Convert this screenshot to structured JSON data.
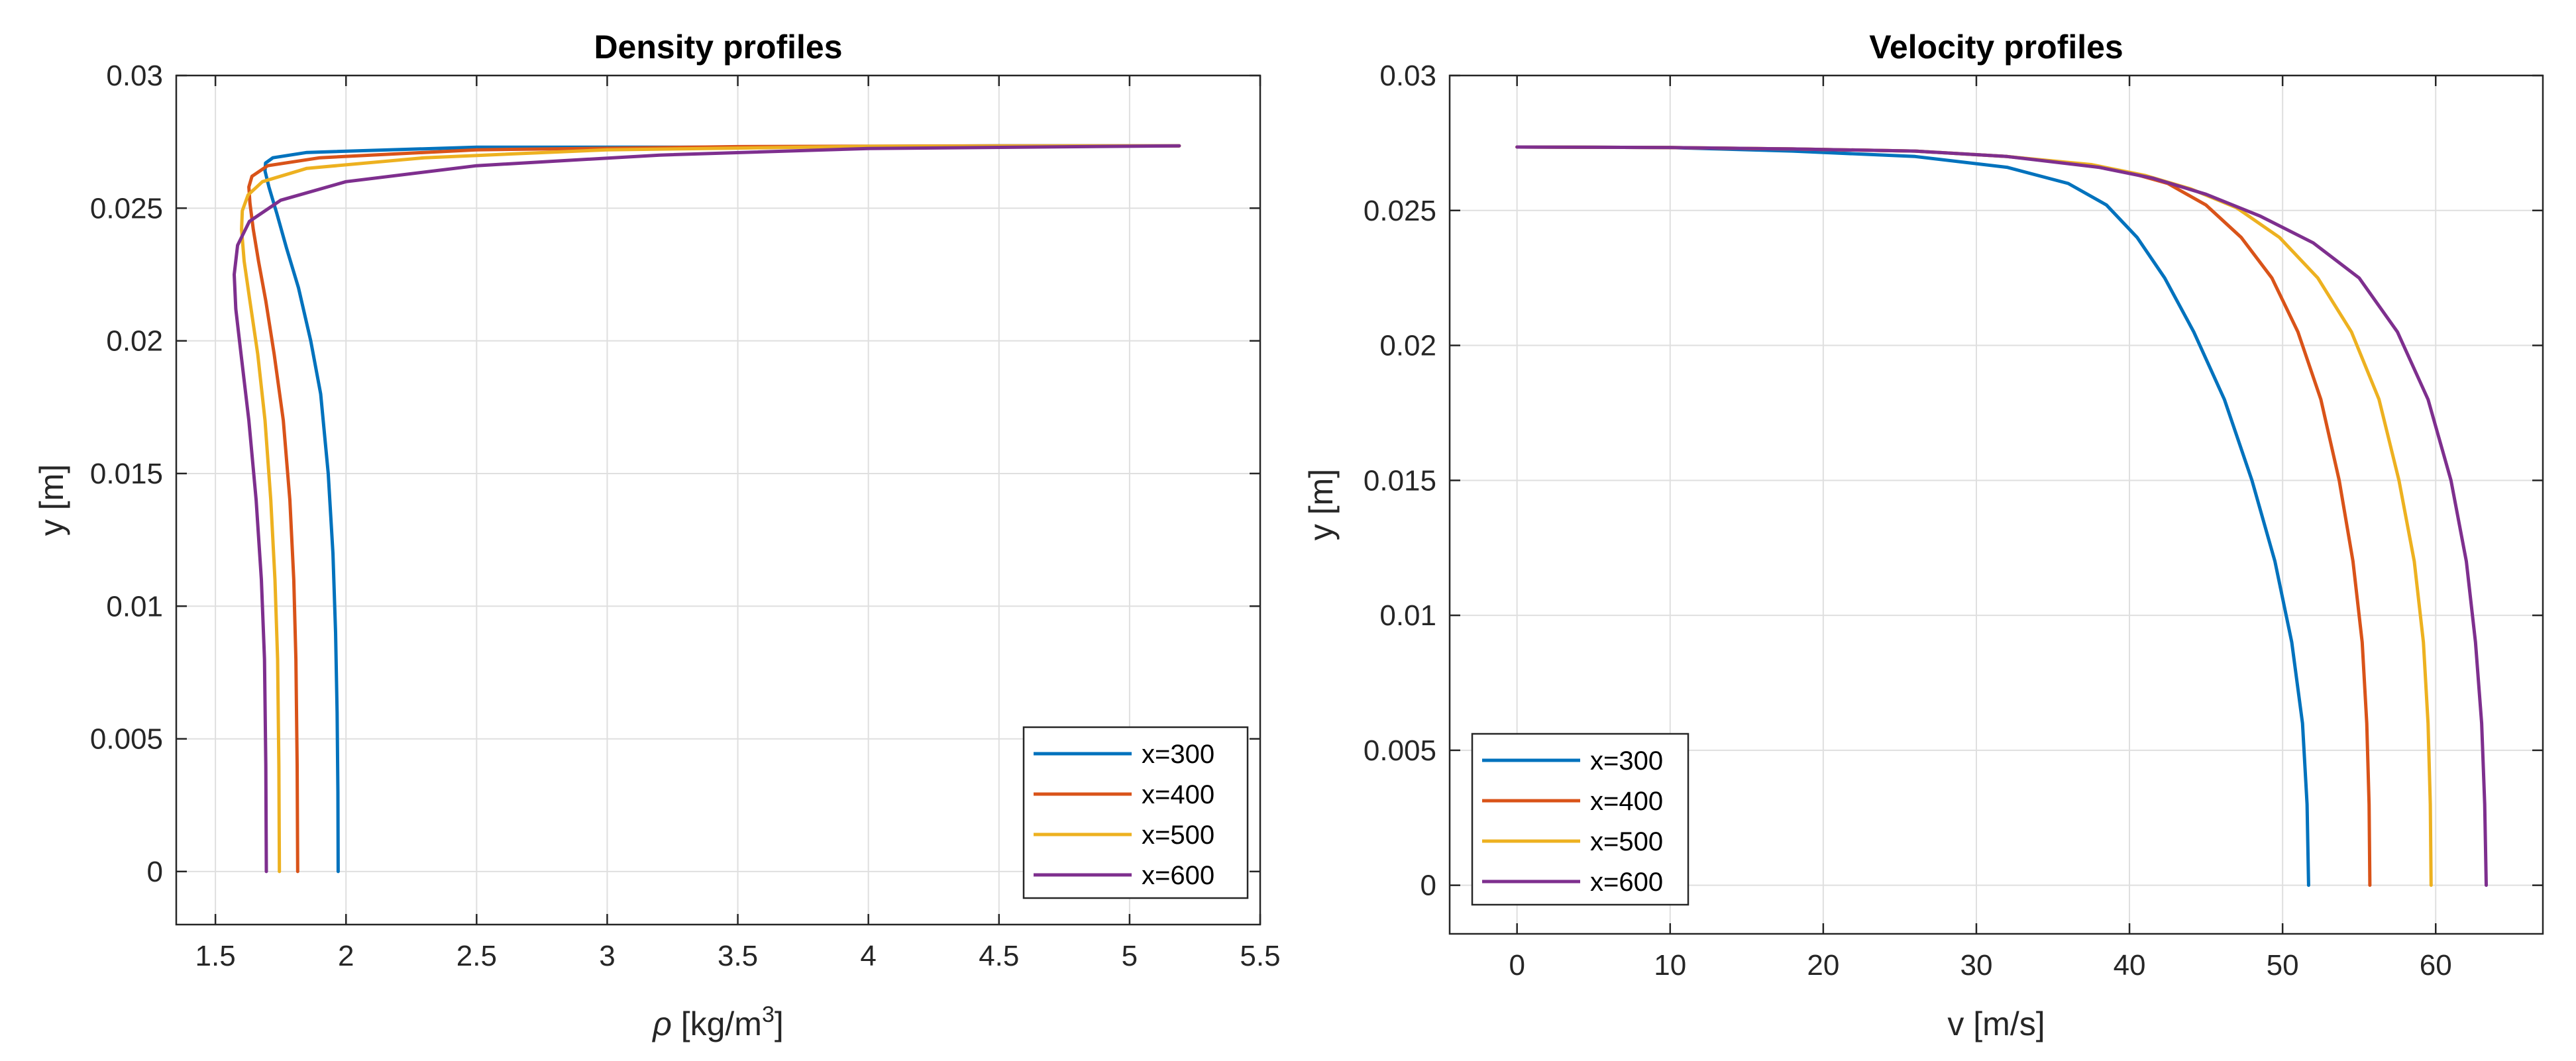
{
  "chart_data": [
    {
      "type": "line",
      "title": "Density profiles",
      "xlabel": "ρ [kg/m³]",
      "xlabel_parts": {
        "symbol": "ρ",
        "unit": " [kg/m",
        "sup": "3",
        "close": "]"
      },
      "ylabel": "y [m]",
      "xlim": [
        1.35,
        5.5
      ],
      "ylim": [
        -0.002,
        0.03
      ],
      "xticks": [
        1.5,
        2,
        2.5,
        3,
        3.5,
        4,
        4.5,
        5,
        5.5
      ],
      "xtick_labels": [
        "1.5",
        "2",
        "2.5",
        "3",
        "3.5",
        "4",
        "4.5",
        "5",
        "5.5"
      ],
      "yticks": [
        0,
        0.005,
        0.01,
        0.015,
        0.02,
        0.025,
        0.03
      ],
      "ytick_labels": [
        "0",
        "0.005",
        "0.01",
        "0.015",
        "0.02",
        "0.025",
        "0.03"
      ],
      "grid": true,
      "legend_location": "bottom-right",
      "series": [
        {
          "name": "x=300",
          "color": "#0072BD",
          "x": [
            1.97,
            1.969,
            1.966,
            1.96,
            1.95,
            1.932,
            1.903,
            1.865,
            1.818,
            1.772,
            1.735,
            1.705,
            1.69,
            1.692,
            1.72,
            1.85,
            2.5,
            3.5,
            4.5,
            5.19
          ],
          "y": [
            0,
            0.003,
            0.006,
            0.009,
            0.012,
            0.015,
            0.018,
            0.02,
            0.022,
            0.0235,
            0.0248,
            0.0258,
            0.0264,
            0.0267,
            0.0269,
            0.0271,
            0.0273,
            0.0273,
            0.02735,
            0.02735
          ]
        },
        {
          "name": "x=400",
          "color": "#D95319",
          "x": [
            1.815,
            1.813,
            1.808,
            1.8,
            1.785,
            1.76,
            1.725,
            1.693,
            1.665,
            1.645,
            1.632,
            1.628,
            1.64,
            1.7,
            1.9,
            2.5,
            3.5,
            4.5,
            5.19
          ],
          "y": [
            0,
            0.004,
            0.008,
            0.011,
            0.014,
            0.017,
            0.0195,
            0.0215,
            0.023,
            0.0242,
            0.0252,
            0.0258,
            0.0262,
            0.0266,
            0.0269,
            0.0272,
            0.02732,
            0.02735,
            0.02735
          ]
        },
        {
          "name": "x=500",
          "color": "#EDB120",
          "x": [
            1.745,
            1.743,
            1.738,
            1.728,
            1.712,
            1.69,
            1.662,
            1.632,
            1.61,
            1.6,
            1.603,
            1.625,
            1.68,
            1.85,
            2.3,
            3.0,
            4.0,
            5.19
          ],
          "y": [
            0,
            0.004,
            0.008,
            0.011,
            0.014,
            0.017,
            0.0195,
            0.0215,
            0.023,
            0.0242,
            0.0249,
            0.0255,
            0.026,
            0.0265,
            0.0269,
            0.0272,
            0.02733,
            0.02735
          ]
        },
        {
          "name": "x=600",
          "color": "#7E2F8E",
          "x": [
            1.695,
            1.693,
            1.688,
            1.676,
            1.656,
            1.628,
            1.598,
            1.578,
            1.572,
            1.585,
            1.63,
            1.75,
            2.0,
            2.5,
            3.2,
            4.0,
            5.19
          ],
          "y": [
            0,
            0.004,
            0.008,
            0.011,
            0.014,
            0.017,
            0.0195,
            0.0212,
            0.0225,
            0.0236,
            0.0245,
            0.0253,
            0.026,
            0.0266,
            0.027,
            0.02725,
            0.02735
          ]
        }
      ]
    },
    {
      "type": "line",
      "title": "Velocity profiles",
      "xlabel": "v [m/s]",
      "ylabel": "y [m]",
      "xlim": [
        -4.4,
        67
      ],
      "ylim": [
        -0.0018,
        0.03
      ],
      "xticks": [
        0,
        10,
        20,
        30,
        40,
        50,
        60
      ],
      "xtick_labels": [
        "0",
        "10",
        "20",
        "30",
        "40",
        "50",
        "60"
      ],
      "yticks": [
        0,
        0.005,
        0.01,
        0.015,
        0.02,
        0.025,
        0.03
      ],
      "ytick_labels": [
        "0",
        "0.005",
        "0.01",
        "0.015",
        "0.02",
        "0.025",
        "0.03"
      ],
      "grid": true,
      "legend_location": "bottom-left",
      "series": [
        {
          "name": "x=300",
          "color": "#0072BD",
          "x": [
            51.7,
            51.6,
            51.3,
            50.6,
            49.5,
            48,
            46.2,
            44.2,
            42.3,
            40.5,
            38.5,
            36,
            32,
            26,
            18,
            10,
            0
          ],
          "y": [
            0,
            0.003,
            0.006,
            0.009,
            0.012,
            0.015,
            0.018,
            0.0205,
            0.0225,
            0.024,
            0.0252,
            0.026,
            0.0266,
            0.027,
            0.0272,
            0.02733,
            0.02735
          ]
        },
        {
          "name": "x=400",
          "color": "#D95319",
          "x": [
            55.7,
            55.65,
            55.5,
            55.2,
            54.6,
            53.7,
            52.5,
            51,
            49.3,
            47.3,
            45,
            42.5,
            40,
            37,
            32,
            26,
            18,
            10,
            0
          ],
          "y": [
            0,
            0.003,
            0.006,
            0.009,
            0.012,
            0.015,
            0.018,
            0.0205,
            0.0225,
            0.024,
            0.0252,
            0.026,
            0.0264,
            0.0267,
            0.027,
            0.0272,
            0.02728,
            0.02733,
            0.02735
          ]
        },
        {
          "name": "x=500",
          "color": "#EDB120",
          "x": [
            59.7,
            59.65,
            59.5,
            59.2,
            58.6,
            57.6,
            56.3,
            54.5,
            52.3,
            49.8,
            47,
            44,
            41,
            37.5,
            32,
            26,
            18,
            10,
            0
          ],
          "y": [
            0,
            0.003,
            0.006,
            0.009,
            0.012,
            0.015,
            0.018,
            0.0205,
            0.0225,
            0.024,
            0.0251,
            0.0258,
            0.0263,
            0.0267,
            0.027,
            0.0272,
            0.02728,
            0.02733,
            0.02735
          ]
        },
        {
          "name": "x=600",
          "color": "#7E2F8E",
          "x": [
            63.3,
            63.2,
            63.0,
            62.6,
            62,
            61,
            59.5,
            57.5,
            55,
            52,
            48.5,
            45,
            41.5,
            38,
            32,
            26,
            18,
            10,
            0
          ],
          "y": [
            0,
            0.003,
            0.006,
            0.009,
            0.012,
            0.015,
            0.018,
            0.0205,
            0.0225,
            0.0238,
            0.0248,
            0.0256,
            0.0262,
            0.0266,
            0.027,
            0.0272,
            0.02728,
            0.02733,
            0.02735
          ]
        }
      ]
    }
  ]
}
